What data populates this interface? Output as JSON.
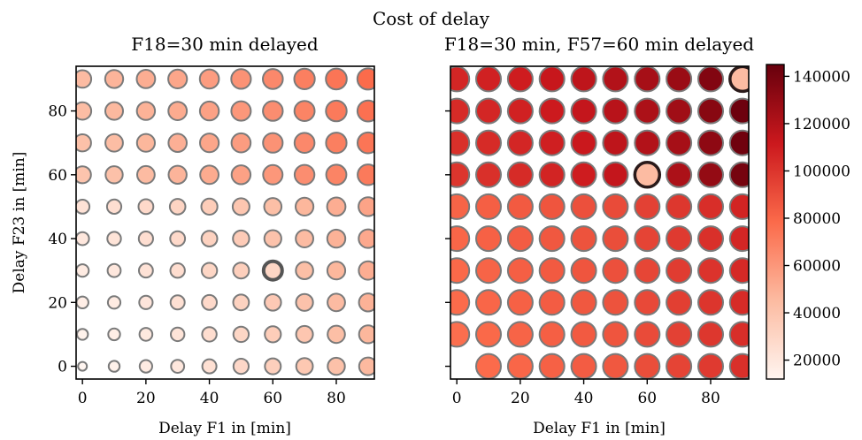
{
  "figure": {
    "suptitle": "Cost of delay"
  },
  "colorbar": {
    "min": 12000,
    "max": 145000,
    "ticks": [
      20000,
      40000,
      60000,
      80000,
      100000,
      120000,
      140000
    ],
    "tick_labels": [
      "20000",
      "40000",
      "60000",
      "80000",
      "100000",
      "120000",
      "140000"
    ],
    "colormap": "Reds"
  },
  "chart_data": [
    {
      "type": "scatter",
      "title": "F18=30 min delayed",
      "xlabel": "Delay F1 in [min]",
      "ylabel": "Delay F23 in [min]",
      "xlim": [
        -2,
        92
      ],
      "ylim": [
        -4,
        94
      ],
      "xticks": [
        0,
        20,
        40,
        60,
        80
      ],
      "yticks": [
        0,
        20,
        40,
        60,
        80
      ],
      "x": [
        0,
        10,
        20,
        30,
        40,
        50,
        60,
        70,
        80,
        90
      ],
      "y": [
        0,
        10,
        20,
        30,
        40,
        50,
        60,
        70,
        80,
        90
      ],
      "cost_matrix_rows_y_cols_x": [
        [
          12000,
          14000,
          18000,
          20000,
          24000,
          29000,
          34000,
          38000,
          42000,
          46000
        ],
        [
          14000,
          16000,
          19000,
          22000,
          26000,
          30000,
          35000,
          39000,
          43000,
          47000
        ],
        [
          16000,
          18000,
          21000,
          24000,
          28000,
          32000,
          37000,
          41000,
          45000,
          49000
        ],
        [
          18000,
          20000,
          23000,
          26000,
          30000,
          34000,
          30000,
          43000,
          47000,
          51000
        ],
        [
          20000,
          22000,
          25000,
          28000,
          32000,
          36000,
          41000,
          45000,
          49000,
          53000
        ],
        [
          23000,
          25000,
          28000,
          31000,
          35000,
          39000,
          43000,
          47000,
          51000,
          55000
        ],
        [
          40000,
          42000,
          45000,
          48000,
          52000,
          56000,
          60000,
          64000,
          68000,
          72000
        ],
        [
          42000,
          44000,
          47000,
          50000,
          54000,
          58000,
          62000,
          66000,
          70000,
          74000
        ],
        [
          44000,
          46000,
          49000,
          52000,
          56000,
          60000,
          64000,
          68000,
          72000,
          76000
        ],
        [
          45000,
          48000,
          51000,
          54000,
          58000,
          62000,
          66000,
          70000,
          74000,
          78000
        ]
      ],
      "highlight": {
        "x": 60,
        "y": 30
      }
    },
    {
      "type": "scatter",
      "title": "F18=30 min, F57=60 min delayed",
      "xlabel": "Delay F1 in [min]",
      "ylabel": "",
      "xlim": [
        -2,
        92
      ],
      "ylim": [
        -4,
        94
      ],
      "xticks": [
        0,
        20,
        40,
        60,
        80
      ],
      "yticks": [
        0,
        20,
        40,
        60,
        80
      ],
      "x": [
        0,
        10,
        20,
        30,
        40,
        50,
        60,
        70,
        80,
        90
      ],
      "y": [
        0,
        10,
        20,
        30,
        40,
        50,
        60,
        70,
        80,
        90
      ],
      "cost_matrix_rows_y_cols_x": [
        [
          null,
          78000,
          80000,
          82000,
          84000,
          86000,
          90000,
          94000,
          98000,
          102000
        ],
        [
          77000,
          79000,
          81000,
          83000,
          85000,
          87000,
          91000,
          95000,
          99000,
          103000
        ],
        [
          78000,
          80000,
          82000,
          84000,
          86000,
          88000,
          92000,
          96000,
          100000,
          104000
        ],
        [
          79000,
          81000,
          83000,
          85000,
          87000,
          89000,
          93000,
          97000,
          101000,
          105000
        ],
        [
          80000,
          82000,
          84000,
          86000,
          88000,
          90000,
          94000,
          98000,
          102000,
          106000
        ],
        [
          81000,
          83000,
          85000,
          87000,
          89000,
          91000,
          95000,
          99000,
          103000,
          107000
        ],
        [
          100000,
          102000,
          104000,
          107000,
          110000,
          114000,
          45000,
          122000,
          130000,
          140000
        ],
        [
          102000,
          104000,
          106000,
          109000,
          112000,
          116000,
          120000,
          124000,
          132000,
          142000
        ],
        [
          104000,
          106000,
          108000,
          111000,
          114000,
          118000,
          122000,
          126000,
          134000,
          143000
        ],
        [
          106000,
          108000,
          110000,
          113000,
          116000,
          120000,
          124000,
          128000,
          136000,
          45000
        ]
      ],
      "highlight": [
        {
          "x": 60,
          "y": 60
        },
        {
          "x": 90,
          "y": 90
        }
      ]
    }
  ]
}
